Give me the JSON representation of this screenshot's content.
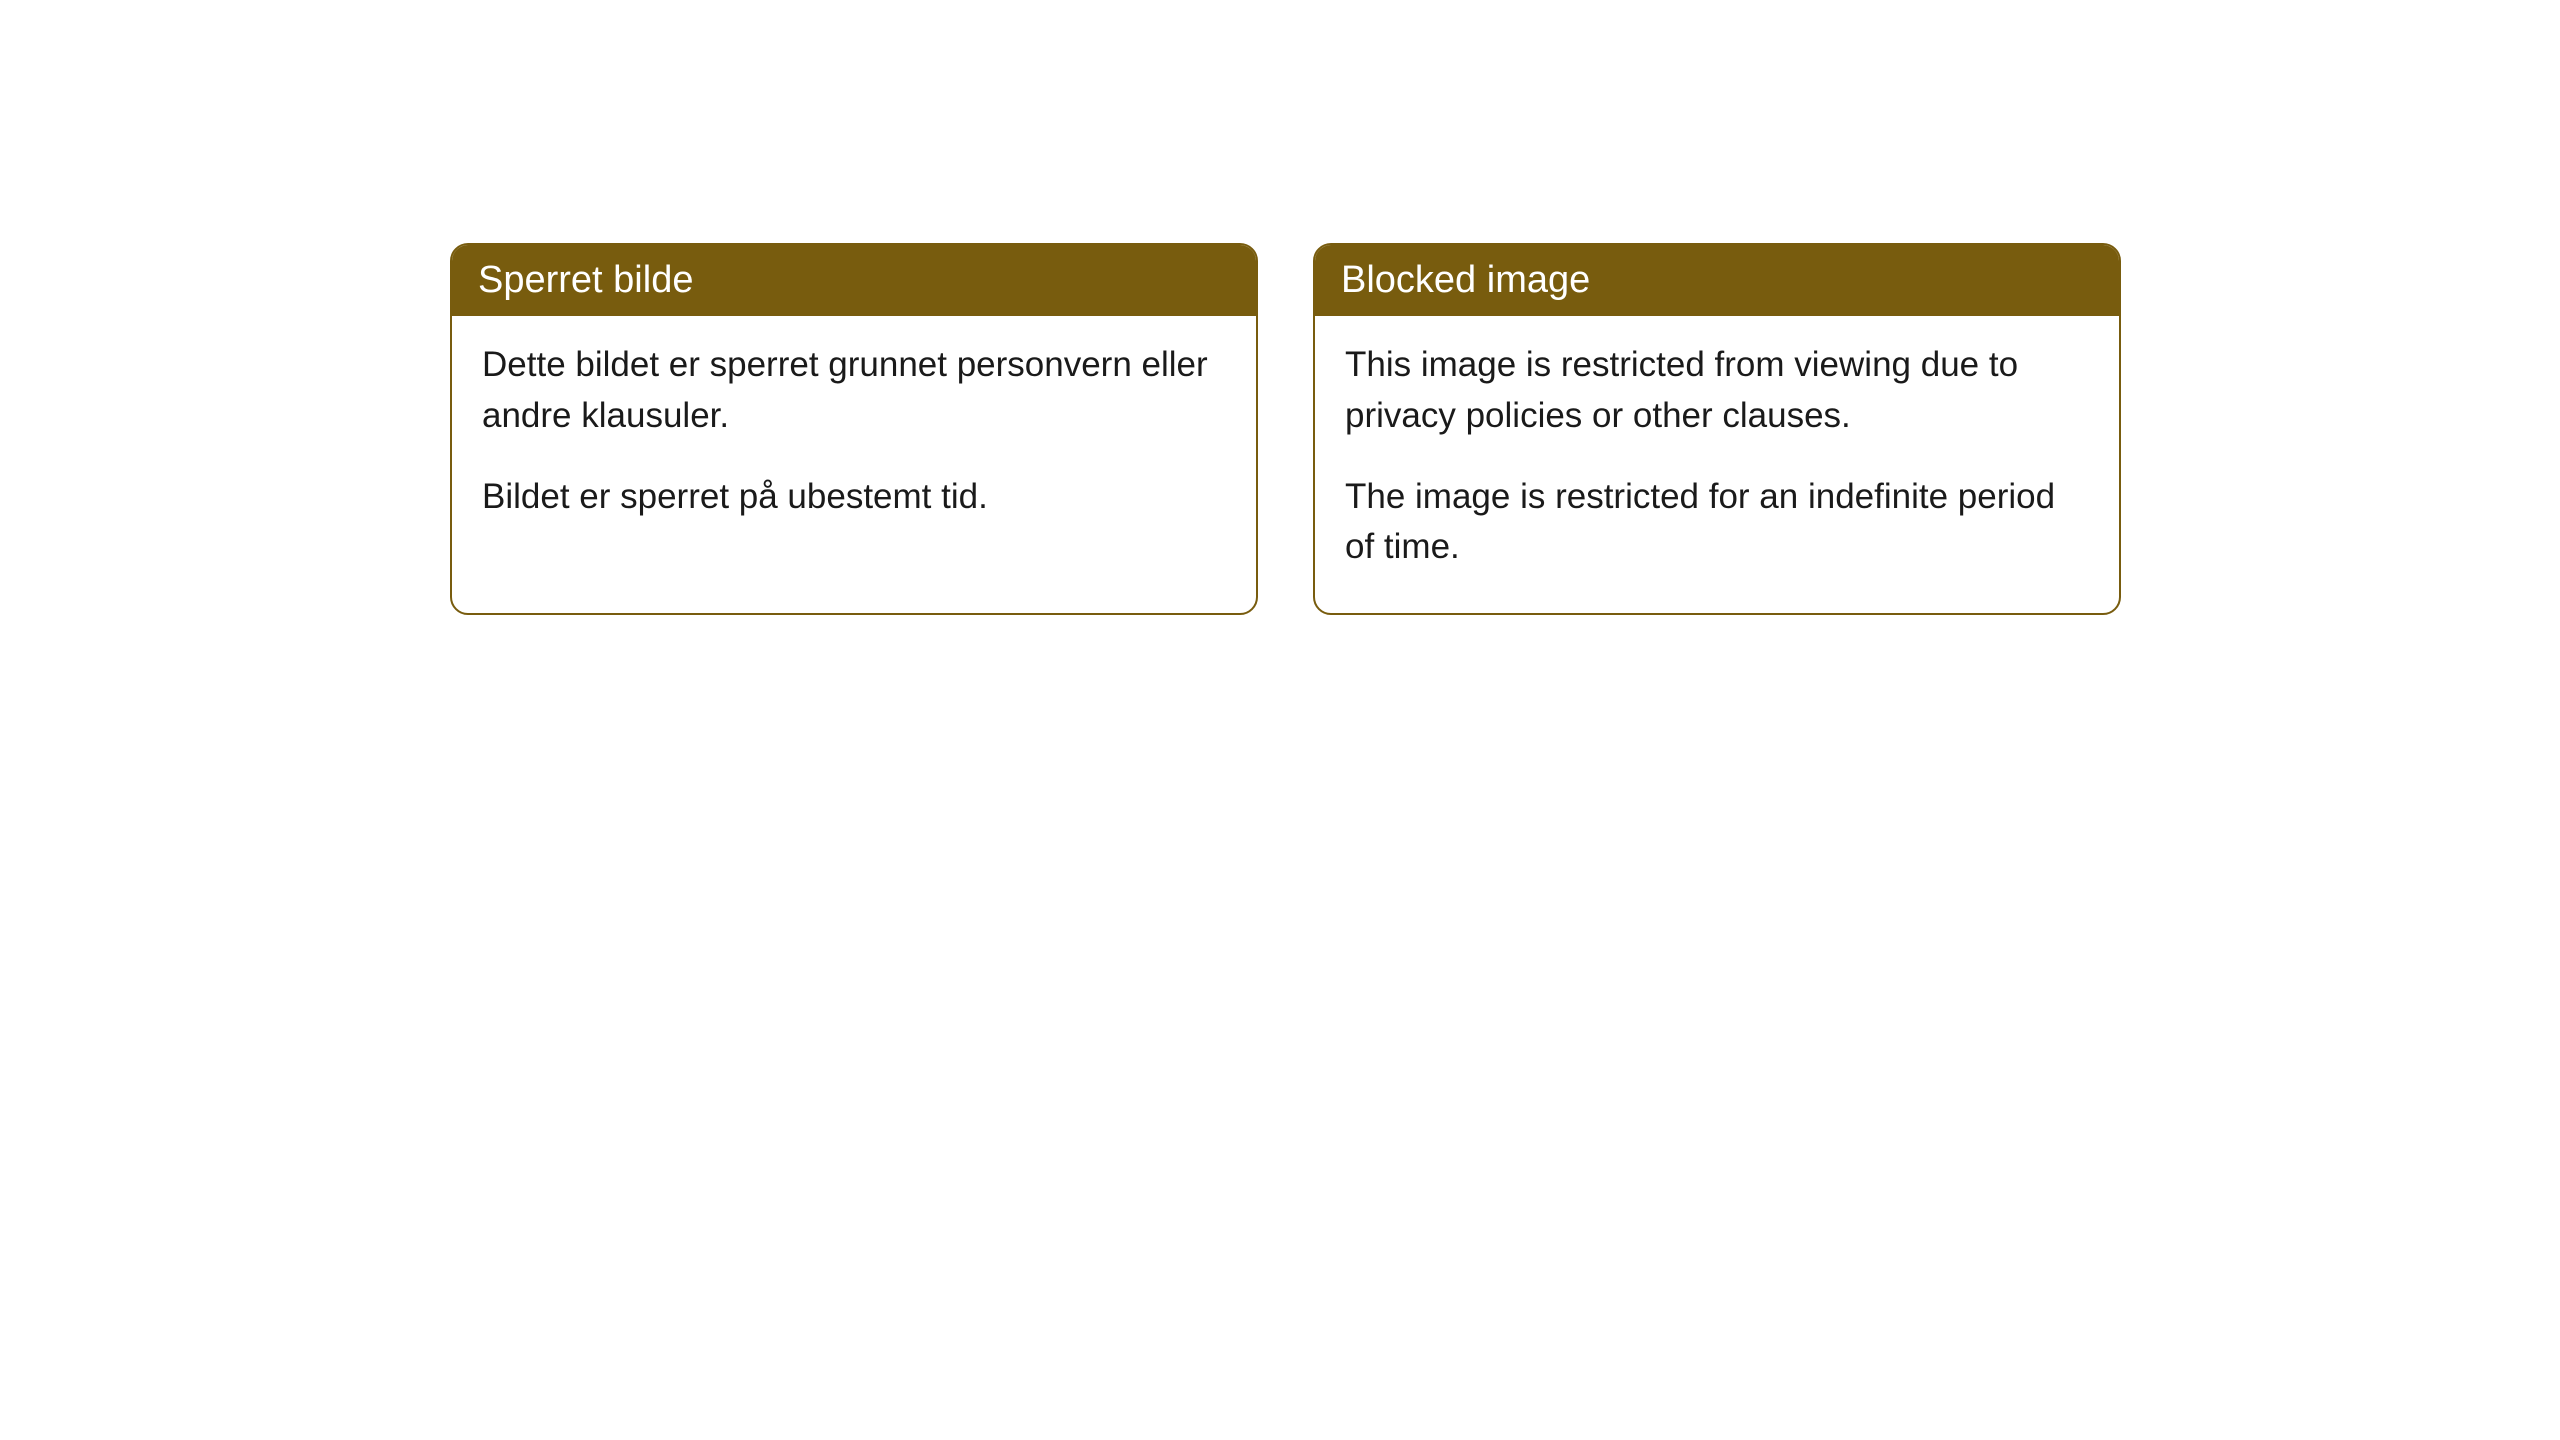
{
  "cards": [
    {
      "title": "Sperret bilde",
      "para1": "Dette bildet er sperret grunnet personvern eller andre klausuler.",
      "para2": "Bildet er sperret på ubestemt tid."
    },
    {
      "title": "Blocked image",
      "para1": "This image is restricted from viewing due to privacy policies or other clauses.",
      "para2": "The image is restricted for an indefinite period of time."
    }
  ],
  "styling": {
    "header_bg_color": "#785c0e",
    "header_text_color": "#ffffff",
    "border_color": "#785c0e",
    "body_bg_color": "#ffffff",
    "body_text_color": "#1a1a1a",
    "border_radius": 18,
    "title_fontsize": 38,
    "body_fontsize": 35
  }
}
